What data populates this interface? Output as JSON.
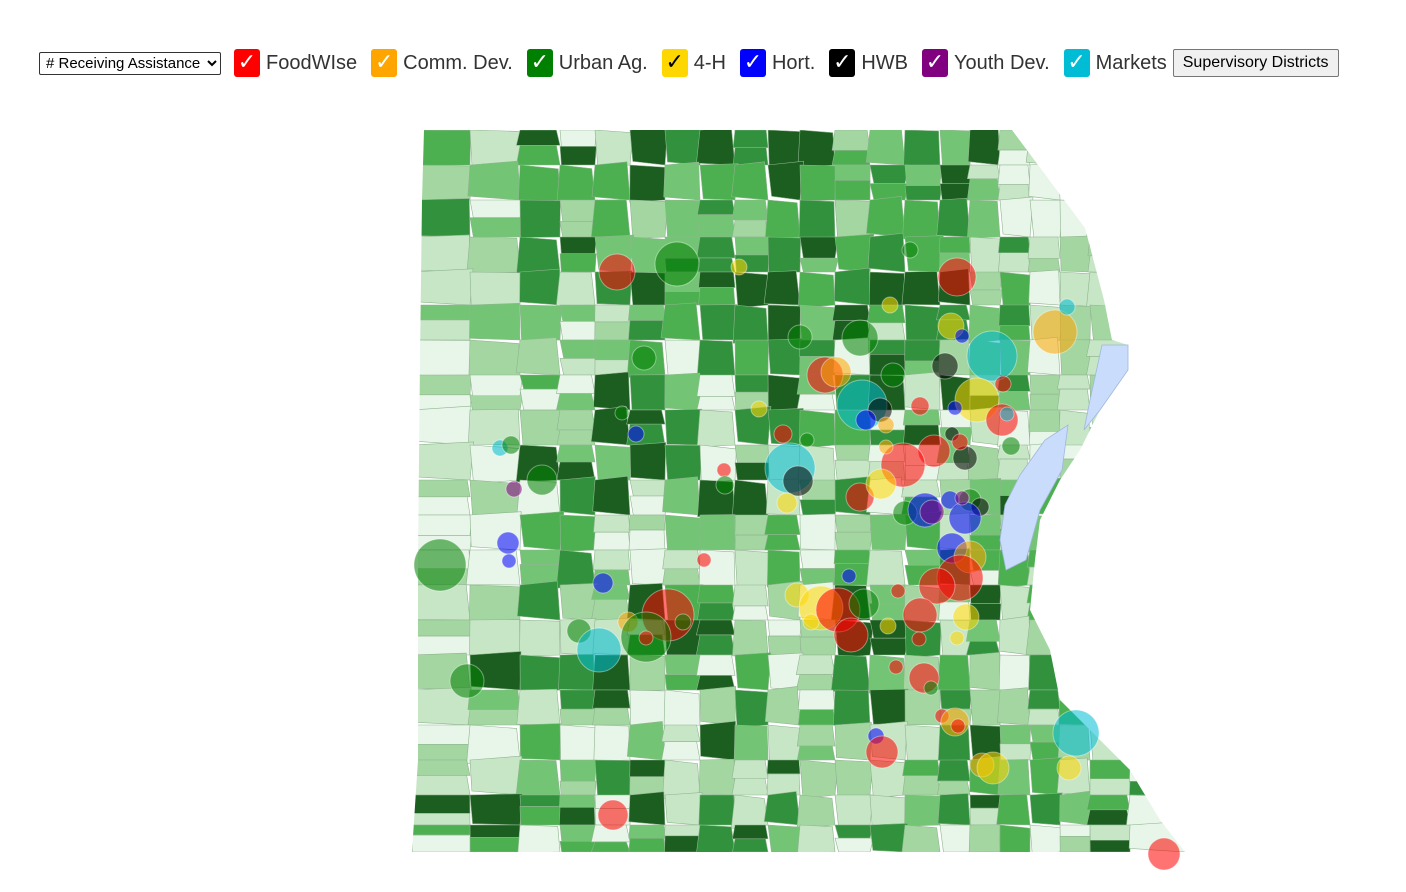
{
  "toolbar": {
    "metric_select": {
      "value": "# Receiving Assistance",
      "options": [
        "# Receiving Assistance"
      ]
    },
    "layers": [
      {
        "id": "foodwise",
        "label": "FoodWIse",
        "color": "#ff0000",
        "checked": true
      },
      {
        "id": "comm-dev",
        "label": "Comm. Dev.",
        "color": "#ffa500",
        "checked": true
      },
      {
        "id": "urban-ag",
        "label": "Urban Ag.",
        "color": "#008000",
        "checked": true
      },
      {
        "id": "four-h",
        "label": "4-H",
        "color": "#ffd700",
        "checked": true
      },
      {
        "id": "hort",
        "label": "Hort.",
        "color": "#0000ff",
        "checked": true
      },
      {
        "id": "hwb",
        "label": "HWB",
        "color": "#000000",
        "checked": true
      },
      {
        "id": "youth-dev",
        "label": "Youth Dev.",
        "color": "#800080",
        "checked": true
      },
      {
        "id": "markets",
        "label": "Markets",
        "color": "#00bcd4",
        "checked": true
      }
    ],
    "districts_button": "Supervisory Districts"
  },
  "icons": {
    "check": "check-icon",
    "dropdown": "chevron-down-icon"
  },
  "map": {
    "choropleth_palette": [
      "#e8f5e9",
      "#c7e6c6",
      "#a4d6a2",
      "#74c476",
      "#4caf50",
      "#31913d",
      "#1b5e20"
    ],
    "water_color": "#c9dcfb"
  }
}
